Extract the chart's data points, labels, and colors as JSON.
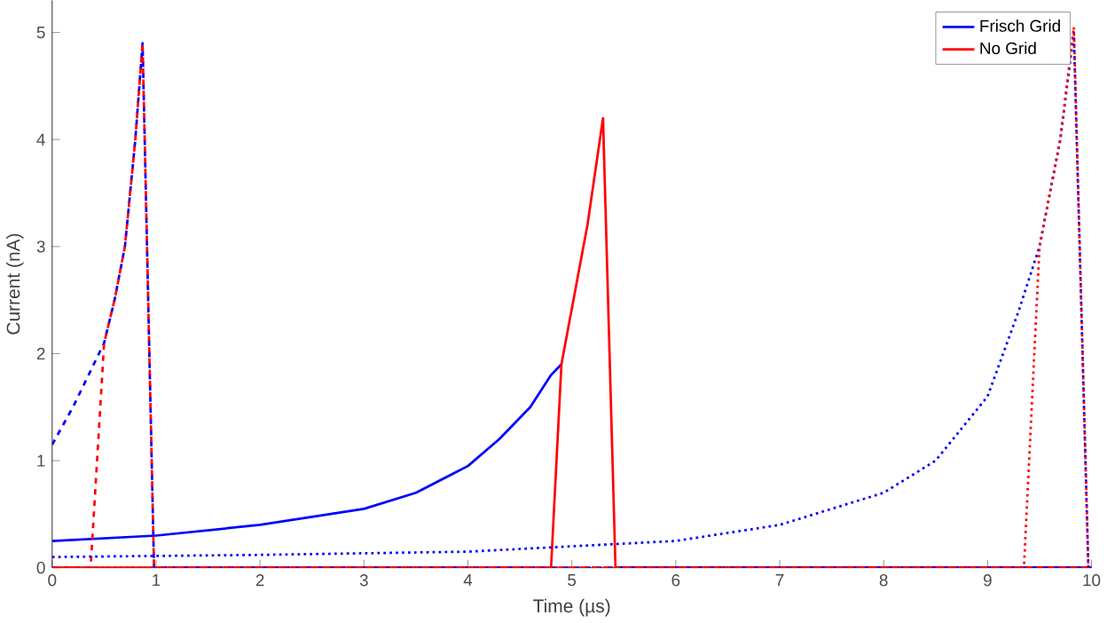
{
  "chart_data": {
    "type": "line",
    "xlabel": "Time (µs)",
    "ylabel": "Current (nA)",
    "xlim": [
      0,
      10
    ],
    "ylim": [
      0,
      5.3
    ],
    "xticks": [
      0,
      1,
      2,
      3,
      4,
      5,
      6,
      7,
      8,
      9,
      10
    ],
    "yticks": [
      0,
      1,
      2,
      3,
      4,
      5
    ],
    "grid": false,
    "legend": "top right",
    "marker": "none",
    "series": [
      {
        "name": "Frisch Grid",
        "color": "#0000ff",
        "line_style": "solid",
        "x": [
          0,
          1,
          2,
          3,
          3.5,
          4,
          4.3,
          4.6,
          4.8,
          4.9,
          5.15,
          5.3,
          5.42,
          6,
          10
        ],
        "values": [
          0.25,
          0.3,
          0.4,
          0.55,
          0.7,
          0.95,
          1.2,
          1.5,
          1.8,
          1.9,
          null,
          null,
          0,
          0,
          0
        ]
      },
      {
        "name": "No Grid",
        "color": "#ff0000",
        "line_style": "solid",
        "x": [
          0,
          4.8,
          4.9,
          5.15,
          5.3,
          5.42,
          10
        ],
        "values": [
          0,
          0,
          1.9,
          3.2,
          4.2,
          0,
          0
        ]
      },
      {
        "color": "#0000ff",
        "line_style": "dashed",
        "x": [
          0,
          0.2,
          0.4,
          0.5,
          0.6,
          0.7,
          0.8,
          0.87,
          0.98,
          10
        ],
        "values": [
          1.15,
          1.5,
          1.9,
          2.1,
          2.5,
          3.0,
          4.0,
          4.9,
          0,
          0
        ]
      },
      {
        "color": "#ff0000",
        "line_style": "dashed",
        "x": [
          0,
          0.37,
          0.5,
          0.6,
          0.7,
          0.8,
          0.87,
          0.98,
          10
        ],
        "values": [
          0,
          0,
          2.1,
          2.5,
          3.0,
          4.0,
          4.9,
          0,
          0
        ]
      },
      {
        "color": "#0000ff",
        "line_style": "dotted",
        "x": [
          0,
          2,
          4,
          5,
          6,
          7,
          8,
          8.5,
          9,
          9.3,
          9.5,
          9.7,
          9.83,
          9.97
        ],
        "values": [
          0.1,
          0.12,
          0.15,
          0.2,
          0.25,
          0.4,
          0.7,
          1.0,
          1.6,
          2.4,
          3.0,
          4.0,
          5.0,
          0
        ]
      },
      {
        "color": "#ff0000",
        "line_style": "dotted",
        "x": [
          0,
          9.35,
          9.5,
          9.7,
          9.83,
          9.97
        ],
        "values": [
          0,
          0,
          3.0,
          4.0,
          5.05,
          0
        ]
      }
    ]
  }
}
